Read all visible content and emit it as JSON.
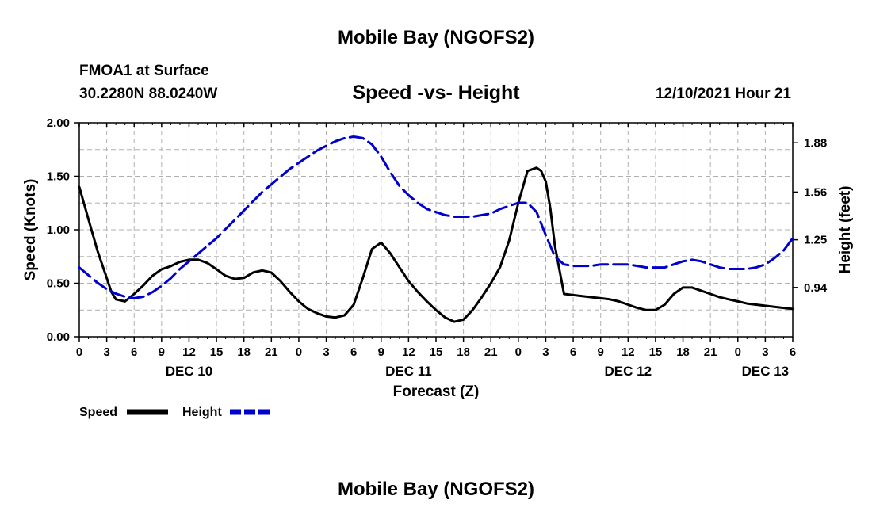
{
  "header": {
    "title": "Mobile Bay (NGOFS2)",
    "station": "FMOA1 at Surface",
    "coords": "30.2280N  88.0240W",
    "subtitle": "Speed -vs- Height",
    "timestamp": "12/10/2021 Hour 21"
  },
  "footer": {
    "title": "Mobile Bay (NGOFS2)"
  },
  "legend": {
    "speed_label": "Speed",
    "height_label": "Height"
  },
  "colors": {
    "speed": "#000000",
    "height": "#0000cc",
    "grid": "#b0b0b0"
  },
  "chart_data": {
    "type": "line",
    "title": "Speed -vs- Height",
    "xlabel": "Forecast (Z)",
    "ylabel": "Speed (Knots)",
    "y2label": "Height (feet)",
    "x_unit": "hours since DEC 10 00Z",
    "xlim": [
      0,
      78
    ],
    "ylim": [
      0,
      2.0
    ],
    "y2lim": [
      0.62,
      2.01
    ],
    "x_ticks": [
      0,
      3,
      6,
      9,
      12,
      15,
      18,
      21,
      24,
      27,
      30,
      33,
      36,
      39,
      42,
      45,
      48,
      51,
      54,
      57,
      60,
      63,
      66,
      69,
      72,
      75,
      78
    ],
    "x_tick_labels": [
      "0",
      "3",
      "6",
      "9",
      "12",
      "15",
      "18",
      "21",
      "0",
      "3",
      "6",
      "9",
      "12",
      "15",
      "18",
      "21",
      "0",
      "3",
      "6",
      "9",
      "12",
      "15",
      "18",
      "21",
      "0",
      "3",
      "6"
    ],
    "day_labels": [
      {
        "x": 12,
        "label": "DEC 10"
      },
      {
        "x": 36,
        "label": "DEC 11"
      },
      {
        "x": 60,
        "label": "DEC 12"
      },
      {
        "x": 75,
        "label": "DEC 13"
      }
    ],
    "y_ticks": [
      0,
      0.5,
      1.0,
      1.5,
      2.0
    ],
    "y_tick_labels": [
      "0.00",
      "0.50",
      "1.00",
      "1.50",
      "2.00"
    ],
    "y2_ticks": [
      0.94,
      1.25,
      1.56,
      1.88
    ],
    "y2_tick_labels": [
      "0.94",
      "1.25",
      "1.56",
      "1.88"
    ],
    "series": [
      {
        "name": "Speed",
        "axis": "left",
        "style": "solid",
        "x": [
          0,
          1,
          2,
          3,
          3.5,
          4,
          5,
          6,
          7,
          8,
          9,
          10,
          11,
          12,
          13,
          14,
          15,
          16,
          17,
          18,
          19,
          20,
          21,
          22,
          23,
          24,
          25,
          26,
          27,
          28,
          29,
          30,
          31,
          32,
          33,
          34,
          35,
          36,
          37,
          38,
          39,
          40,
          41,
          42,
          43,
          44,
          45,
          46,
          47,
          48,
          49,
          50,
          50.5,
          51,
          51.5,
          52,
          53,
          54,
          55,
          56,
          57,
          58,
          59,
          60,
          61,
          62,
          63,
          64,
          65,
          66,
          67,
          68,
          69,
          70,
          71,
          72,
          73,
          74,
          75,
          76,
          77,
          78
        ],
        "values": [
          1.4,
          1.1,
          0.8,
          0.55,
          0.42,
          0.35,
          0.33,
          0.4,
          0.48,
          0.57,
          0.63,
          0.66,
          0.7,
          0.72,
          0.72,
          0.69,
          0.63,
          0.57,
          0.54,
          0.55,
          0.6,
          0.62,
          0.6,
          0.52,
          0.42,
          0.33,
          0.26,
          0.22,
          0.19,
          0.18,
          0.2,
          0.3,
          0.55,
          0.82,
          0.88,
          0.78,
          0.65,
          0.52,
          0.42,
          0.33,
          0.25,
          0.18,
          0.14,
          0.16,
          0.25,
          0.37,
          0.5,
          0.65,
          0.9,
          1.25,
          1.55,
          1.58,
          1.55,
          1.45,
          1.2,
          0.85,
          0.4,
          0.39,
          0.38,
          0.37,
          0.36,
          0.35,
          0.33,
          0.3,
          0.27,
          0.25,
          0.25,
          0.3,
          0.4,
          0.46,
          0.46,
          0.43,
          0.4,
          0.37,
          0.35,
          0.33,
          0.31,
          0.3,
          0.29,
          0.28,
          0.27,
          0.26
        ]
      },
      {
        "name": "Height",
        "axis": "right",
        "style": "dashed",
        "x": [
          0,
          1,
          2,
          3,
          4,
          5,
          6,
          7,
          8,
          9,
          10,
          11,
          12,
          13,
          14,
          15,
          16,
          17,
          18,
          19,
          20,
          21,
          22,
          23,
          24,
          25,
          26,
          27,
          28,
          29,
          30,
          31,
          32,
          33,
          34,
          35,
          36,
          37,
          38,
          39,
          40,
          41,
          42,
          43,
          44,
          45,
          46,
          47,
          48,
          49,
          50,
          51,
          52,
          53,
          54,
          55,
          56,
          57,
          58,
          59,
          60,
          61,
          62,
          63,
          64,
          65,
          66,
          67,
          68,
          69,
          70,
          71,
          72,
          73,
          74,
          75,
          76,
          77,
          78
        ],
        "values": [
          1.07,
          1.02,
          0.97,
          0.93,
          0.9,
          0.88,
          0.87,
          0.88,
          0.91,
          0.95,
          1.0,
          1.06,
          1.11,
          1.16,
          1.21,
          1.26,
          1.32,
          1.38,
          1.44,
          1.5,
          1.56,
          1.61,
          1.66,
          1.71,
          1.75,
          1.79,
          1.83,
          1.86,
          1.89,
          1.91,
          1.92,
          1.91,
          1.87,
          1.79,
          1.69,
          1.6,
          1.54,
          1.49,
          1.45,
          1.43,
          1.41,
          1.4,
          1.4,
          1.4,
          1.41,
          1.42,
          1.45,
          1.47,
          1.49,
          1.49,
          1.43,
          1.28,
          1.14,
          1.09,
          1.08,
          1.08,
          1.08,
          1.09,
          1.09,
          1.09,
          1.09,
          1.08,
          1.07,
          1.07,
          1.07,
          1.09,
          1.11,
          1.12,
          1.11,
          1.09,
          1.07,
          1.06,
          1.06,
          1.06,
          1.07,
          1.09,
          1.13,
          1.18,
          1.26
        ]
      }
    ]
  }
}
